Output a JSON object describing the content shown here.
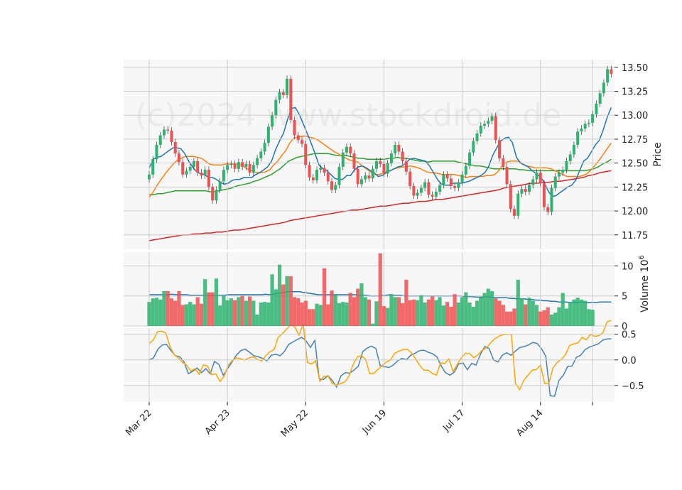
{
  "watermark": "(c)2024 www.stockdroid.de",
  "colors": {
    "up": "#2db36f",
    "down": "#f05050",
    "ma_blue": "#1f77b4",
    "ma_orange": "#ff7f0e",
    "ma_green": "#2ca02c",
    "ma_red": "#d62728",
    "vol_avg": "#1f77b4",
    "osc_blue": "#4682b4",
    "osc_orange": "#ffa500",
    "panel_bg": "#f7f7f7",
    "grid": "#cccccc"
  },
  "chart_data": [
    {
      "type": "candlestick",
      "x_tick_labels": [
        "Mar 22",
        "Apr 23",
        "May 22",
        "Jun 19",
        "Jul 17",
        "Aug 14"
      ],
      "x_tick_index": [
        0,
        21,
        42,
        63,
        84,
        105
      ],
      "ylabel": "Price",
      "ylim": [
        11.6,
        13.58
      ],
      "y_ticks": [
        "11.75",
        "12.00",
        "12.25",
        "12.50",
        "12.75",
        "13.00",
        "13.25",
        "13.50"
      ],
      "grid": true,
      "close": [
        12.38,
        12.54,
        12.69,
        12.79,
        12.85,
        12.84,
        12.72,
        12.6,
        12.51,
        12.38,
        12.42,
        12.46,
        12.52,
        12.4,
        12.37,
        12.43,
        12.25,
        12.11,
        12.22,
        12.31,
        12.43,
        12.48,
        12.49,
        12.44,
        12.51,
        12.46,
        12.49,
        12.4,
        12.48,
        12.55,
        12.62,
        12.71,
        12.88,
        13.0,
        13.16,
        13.24,
        13.21,
        13.38,
        12.95,
        12.79,
        12.74,
        12.7,
        12.48,
        12.35,
        12.32,
        12.43,
        12.45,
        12.4,
        12.31,
        12.22,
        12.27,
        12.46,
        12.61,
        12.67,
        12.6,
        12.44,
        12.28,
        12.33,
        12.37,
        12.34,
        12.44,
        12.52,
        12.49,
        12.39,
        12.5,
        12.6,
        12.69,
        12.62,
        12.52,
        12.41,
        12.26,
        12.16,
        12.19,
        12.24,
        12.3,
        12.17,
        12.15,
        12.2,
        12.27,
        12.38,
        12.34,
        12.26,
        12.24,
        12.3,
        12.38,
        12.47,
        12.61,
        12.73,
        12.81,
        12.89,
        12.91,
        12.94,
        12.99,
        12.74,
        12.55,
        12.46,
        12.28,
        12.02,
        11.95,
        12.18,
        12.23,
        12.2,
        12.27,
        12.33,
        12.4,
        12.29,
        12.04,
        11.99,
        12.24,
        12.36,
        12.4,
        12.43,
        12.52,
        12.59,
        12.69,
        12.83,
        12.86,
        12.91,
        12.92,
        13.01,
        13.12,
        13.23,
        13.34,
        13.48,
        13.43
      ],
      "ma_blue": [
        12.45,
        12.54,
        12.56,
        12.57,
        12.6,
        12.63,
        12.66,
        12.66,
        12.65,
        12.6,
        12.52,
        12.46,
        12.41,
        12.39,
        12.38,
        12.35,
        12.35,
        12.33,
        12.3,
        12.28,
        12.29,
        12.32,
        12.33,
        12.33,
        12.35,
        12.35,
        12.35,
        12.38,
        12.4,
        12.43,
        12.46,
        12.52,
        12.64,
        12.73,
        12.81,
        12.95,
        13.07,
        13.08,
        13.01,
        12.91,
        12.81,
        12.71,
        12.6,
        12.48,
        12.44,
        12.42,
        12.38,
        12.34,
        12.33,
        12.33,
        12.37,
        12.37,
        12.43,
        12.46,
        12.47,
        12.45,
        12.42,
        12.4,
        12.36,
        12.37,
        12.4,
        12.42,
        12.44,
        12.46,
        12.47,
        12.5,
        12.54,
        12.55,
        12.54,
        12.53,
        12.52,
        12.47,
        12.4,
        12.33,
        12.28,
        12.27,
        12.27,
        12.29,
        12.29,
        12.29,
        12.3,
        12.31,
        12.33,
        12.35,
        12.37,
        12.4,
        12.47,
        12.58,
        12.66,
        12.73,
        12.76,
        12.77,
        12.71,
        12.56,
        12.5,
        12.48,
        12.46,
        12.42,
        12.39,
        12.36,
        12.3,
        12.21,
        12.15,
        12.16,
        12.19,
        12.22,
        12.25,
        12.27,
        12.32,
        12.42,
        12.52,
        12.55,
        12.62,
        12.69,
        12.74,
        12.85,
        12.98,
        13.08
      ],
      "ma_orange": [
        12.14,
        12.2,
        12.27,
        12.33,
        12.39,
        12.44,
        12.49,
        12.53,
        12.55,
        12.57,
        12.57,
        12.57,
        12.56,
        12.55,
        12.52,
        12.49,
        12.48,
        12.48,
        12.48,
        12.49,
        12.49,
        12.49,
        12.49,
        12.48,
        12.45,
        12.43,
        12.41,
        12.4,
        12.4,
        12.41,
        12.43,
        12.48,
        12.52,
        12.58,
        12.63,
        12.71,
        12.76,
        12.77,
        12.78,
        12.78,
        12.77,
        12.76,
        12.74,
        12.71,
        12.68,
        12.65,
        12.62,
        12.6,
        12.57,
        12.55,
        12.53,
        12.52,
        12.51,
        12.47,
        12.44,
        12.41,
        12.38,
        12.38,
        12.39,
        12.41,
        12.42,
        12.44,
        12.45,
        12.46,
        12.46,
        12.47,
        12.46,
        12.45,
        12.43,
        12.41,
        12.4,
        12.4,
        12.39,
        12.38,
        12.38,
        12.38,
        12.38,
        12.37,
        12.36,
        12.35,
        12.36,
        12.36,
        12.36,
        12.36,
        12.37,
        12.37,
        12.38,
        12.42,
        12.48,
        12.51,
        12.52,
        12.52,
        12.52,
        12.49,
        12.47,
        12.46,
        12.45,
        12.45,
        12.45,
        12.45,
        12.44,
        12.42,
        12.4,
        12.38,
        12.36,
        12.36,
        12.36,
        12.36,
        12.37,
        12.39,
        12.43,
        12.48,
        12.53,
        12.59,
        12.65,
        12.71
      ],
      "ma_green": [
        12.17,
        12.17,
        12.18,
        12.18,
        12.19,
        12.2,
        12.21,
        12.21,
        12.21,
        12.21,
        12.21,
        12.21,
        12.21,
        12.21,
        12.2,
        12.2,
        12.21,
        12.22,
        12.23,
        12.24,
        12.26,
        12.27,
        12.28,
        12.29,
        12.31,
        12.32,
        12.34,
        12.36,
        12.38,
        12.41,
        12.44,
        12.48,
        12.52,
        12.54,
        12.56,
        12.57,
        12.58,
        12.59,
        12.6,
        12.6,
        12.6,
        12.6,
        12.59,
        12.58,
        12.58,
        12.58,
        12.57,
        12.56,
        12.55,
        12.55,
        12.54,
        12.54,
        12.54,
        12.54,
        12.54,
        12.55,
        12.55,
        12.56,
        12.55,
        12.55,
        12.54,
        12.53,
        12.52,
        12.52,
        12.51,
        12.52,
        12.52,
        12.52,
        12.52,
        12.52,
        12.52,
        12.51,
        12.5,
        12.49,
        12.48,
        12.47,
        12.47,
        12.46,
        12.45,
        12.44,
        12.44,
        12.44,
        12.44,
        12.44,
        12.44,
        12.43,
        12.43,
        12.42,
        12.42,
        12.42,
        12.42,
        12.42,
        12.42,
        12.42,
        12.42,
        12.42,
        12.42,
        12.42,
        12.42,
        12.42,
        12.42,
        12.43,
        12.44,
        12.46,
        12.49,
        12.51,
        12.54
      ],
      "ma_red": [
        11.69,
        11.7,
        11.71,
        11.72,
        11.73,
        11.74,
        11.75,
        11.75,
        11.76,
        11.76,
        11.77,
        11.77,
        11.78,
        11.78,
        11.79,
        11.8,
        11.8,
        11.81,
        11.82,
        11.83,
        11.84,
        11.85,
        11.86,
        11.87,
        11.88,
        11.9,
        11.91,
        11.92,
        11.93,
        11.94,
        11.95,
        11.96,
        11.97,
        11.98,
        11.99,
        12.0,
        12.01,
        12.01,
        12.02,
        12.03,
        12.04,
        12.05,
        12.05,
        12.06,
        12.07,
        12.08,
        12.08,
        12.09,
        12.1,
        12.1,
        12.11,
        12.12,
        12.12,
        12.13,
        12.14,
        12.15,
        12.16,
        12.17,
        12.18,
        12.19,
        12.2,
        12.21,
        12.22,
        12.24,
        12.25,
        12.26,
        12.27,
        12.28,
        12.29,
        12.29,
        12.3,
        12.3,
        12.31,
        12.31,
        12.32,
        12.33,
        12.34,
        12.35,
        12.37,
        12.38,
        12.4,
        12.41,
        12.42
      ]
    },
    {
      "type": "bar",
      "ylabel": "Volume  10^6",
      "ylim": [
        0,
        12.3
      ],
      "y_ticks": [
        "0",
        "5",
        "10"
      ],
      "grid": true,
      "values": [
        4.0,
        4.6,
        4.7,
        4.4,
        5.8,
        5.8,
        4.6,
        4.2,
        5.8,
        3.5,
        3.6,
        4.0,
        3.6,
        4.8,
        3.7,
        7.8,
        5.6,
        5.6,
        7.9,
        3.4,
        5.0,
        4.3,
        4.6,
        4.3,
        4.8,
        5.0,
        4.2,
        4.9,
        4.2,
        1.9,
        3.9,
        4.0,
        3.9,
        8.6,
        6.1,
        10.2,
        6.9,
        8.3,
        8.3,
        4.8,
        4.6,
        3.9,
        4.2,
        2.8,
        2.8,
        3.7,
        3.5,
        9.6,
        3.6,
        5.9,
        5.2,
        3.8,
        4.0,
        3.9,
        5.5,
        4.8,
        6.2,
        7.1,
        4.8,
        4.4,
        0.4,
        4.1,
        12.1,
        3.3,
        3.0,
        5.3,
        4.8,
        4.8,
        3.8,
        7.7,
        4.3,
        4.4,
        4.3,
        5.1,
        3.9,
        4.4,
        4.9,
        4.3,
        4.8,
        3.4,
        4.0,
        3.2,
        5.3,
        3.9,
        4.8,
        5.6,
        3.9,
        3.2,
        4.2,
        4.8,
        5.5,
        6.2,
        5.8,
        4.6,
        4.2,
        3.5,
        2.4,
        2.4,
        2.9,
        7.7,
        4.6,
        3.6,
        4.7,
        4.2,
        3.5,
        2.4,
        2.6,
        3.1,
        1.9,
        2.2,
        3.1,
        5.5,
        2.9,
        3.9,
        4.4,
        4.7,
        4.4,
        4.2,
        2.8,
        2.7
      ],
      "average": [
        5.2,
        5.2,
        5.2,
        5.2,
        5.2,
        5.2,
        5.3,
        5.2,
        5.2,
        5.2,
        5.2,
        5.1,
        5.1,
        5.1,
        5.1,
        5.1,
        5.1,
        5.1,
        5.1,
        5.1,
        5.1,
        5.2,
        5.2,
        5.2,
        5.2,
        5.2,
        5.2,
        5.2,
        5.2,
        5.2,
        5.2,
        5.3,
        5.2,
        5.3,
        5.4,
        5.5,
        5.6,
        5.7,
        5.7,
        5.7,
        5.7,
        5.6,
        5.5,
        5.4,
        5.3,
        5.2,
        5.2,
        5.2,
        5.2,
        5.2,
        5.2,
        5.2,
        5.2,
        5.2,
        5.2,
        5.2,
        5.1,
        5.1,
        5.1,
        5.0,
        5.0,
        5.0,
        5.1,
        5.1,
        5.2,
        5.1,
        5.1,
        5.1,
        5.0,
        5.0,
        5.0,
        5.0,
        5.0,
        5.0,
        5.0,
        5.0,
        5.0,
        5.0,
        5.0,
        5.0,
        5.0,
        5.0,
        5.0,
        5.0,
        4.9,
        4.9,
        4.9,
        4.8,
        4.8,
        4.8,
        4.8,
        4.8,
        4.7,
        4.7,
        4.7,
        4.7,
        4.6,
        4.6,
        4.5,
        4.5,
        4.5,
        4.4,
        4.4,
        4.3,
        4.3,
        4.2,
        4.2,
        4.1,
        4.1,
        4.0,
        4.0,
        4.0,
        3.9,
        3.9,
        3.9,
        4.0,
        3.9,
        3.9,
        3.9,
        3.9,
        4.0,
        4.0,
        4.0,
        4.0
      ]
    },
    {
      "type": "line",
      "ylim": [
        -0.82,
        0.62
      ],
      "y_ticks": [
        "−0.5",
        "0.0",
        "0.5"
      ],
      "grid": true,
      "series": [
        {
          "values": [
            0.0,
            0.04,
            0.21,
            0.29,
            0.3,
            0.18,
            0.08,
            0.06,
            -0.04,
            -0.27,
            -0.22,
            -0.16,
            -0.25,
            -0.17,
            -0.27,
            -0.03,
            -0.09,
            -0.3,
            -0.17,
            -0.04,
            0.09,
            0.18,
            0.21,
            0.15,
            0.08,
            0.06,
            0.03,
            -0.02,
            0.09,
            0.11,
            0.08,
            0.16,
            0.3,
            0.35,
            0.4,
            0.44,
            0.37,
            0.24,
            0.38,
            -0.37,
            -0.38,
            -0.31,
            -0.4,
            -0.53,
            -0.31,
            -0.25,
            -0.26,
            -0.2,
            -0.12,
            0.16,
            0.23,
            0.27,
            0.22,
            -0.11,
            -0.13,
            -0.15,
            -0.1,
            -0.02,
            0.03,
            0.0,
            0.09,
            0.13,
            0.18,
            0.19,
            0.15,
            0.12,
            0.06,
            -0.12,
            -0.25,
            -0.3,
            -0.24,
            -0.08,
            -0.06,
            -0.19,
            -0.07,
            -0.1,
            0.11,
            0.26,
            0.22,
            0.0,
            -0.04,
            0.09,
            0.14,
            0.09,
            0.17,
            0.24,
            0.26,
            0.29,
            0.34,
            0.32,
            0.22,
            0.07,
            -0.7,
            -0.71,
            -0.4,
            -0.3,
            -0.13,
            -0.12,
            0.05,
            0.09,
            0.2,
            0.25,
            0.28,
            0.31,
            0.38,
            0.41,
            0.41
          ],
          "color": "#4682b4"
        },
        {
          "values": [
            0.32,
            0.39,
            0.55,
            0.56,
            0.52,
            0.26,
            0.1,
            0.04,
            -0.05,
            -0.1,
            -0.22,
            -0.17,
            -0.28,
            -0.1,
            -0.12,
            -0.29,
            -0.27,
            -0.42,
            -0.32,
            -0.1,
            -0.01,
            0.04,
            0.02,
            0.0,
            0.04,
            0.06,
            0.01,
            -0.02,
            0.08,
            0.16,
            0.2,
            0.44,
            0.51,
            0.6,
            0.68,
            0.64,
            0.48,
            0.7,
            -0.05,
            -0.08,
            -0.02,
            -0.42,
            -0.32,
            -0.32,
            -0.46,
            -0.49,
            -0.46,
            -0.43,
            -0.32,
            -0.09,
            0.06,
            0.08,
            0.01,
            -0.27,
            -0.26,
            -0.18,
            -0.11,
            -0.04,
            0.0,
            0.13,
            0.17,
            0.2,
            0.21,
            0.14,
            0.02,
            -0.11,
            -0.2,
            -0.2,
            -0.26,
            -0.3,
            -0.06,
            -0.07,
            0.02,
            -0.23,
            -0.09,
            0.04,
            0.13,
            0.12,
            0.04,
            0.1,
            0.19,
            0.23,
            0.33,
            0.41,
            0.46,
            0.49,
            0.5,
            0.5,
            -0.46,
            -0.58,
            -0.4,
            -0.3,
            -0.2,
            -0.19,
            -0.1,
            -0.46,
            -0.46,
            -0.16,
            -0.05,
            0.01,
            0.1,
            0.28,
            0.31,
            0.33,
            0.44,
            0.39,
            0.5,
            0.46,
            0.47,
            0.53,
            0.74,
            0.77
          ],
          "color": "#ffa500"
        }
      ]
    }
  ]
}
